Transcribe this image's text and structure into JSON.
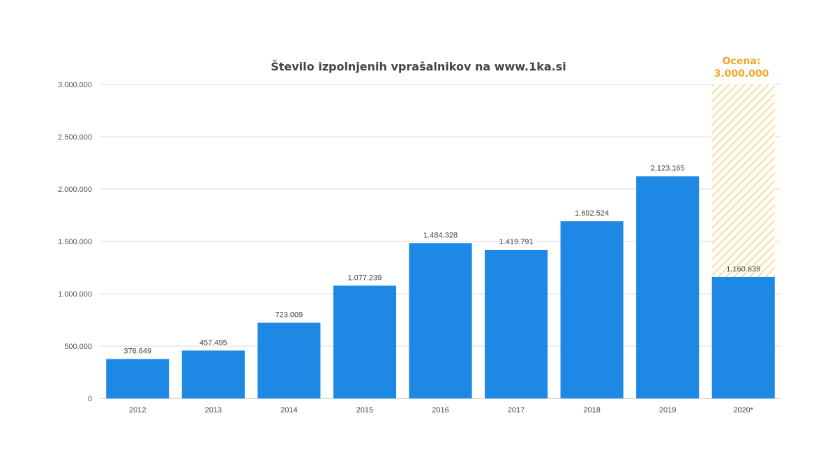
{
  "chart_data": {
    "type": "bar",
    "title": "Število izpolnjenih vprašalnikov na www.1ka.si",
    "xlabel": "",
    "ylabel": "",
    "ylim": [
      0,
      3000000
    ],
    "yticks": [
      0,
      500000,
      1000000,
      1500000,
      2000000,
      2500000,
      3000000
    ],
    "ytick_labels": [
      "0",
      "500.000",
      "1.000.000",
      "1.500.000",
      "2.000.000",
      "2.500.000",
      "3.000.000"
    ],
    "categories": [
      "2012",
      "2013",
      "2014",
      "2015",
      "2016",
      "2017",
      "2018",
      "2019",
      "2020*"
    ],
    "values": [
      376649,
      457495,
      723009,
      1077239,
      1484328,
      1419791,
      1692524,
      2123165,
      1160639
    ],
    "value_labels": [
      "376.649",
      "457.495",
      "723.009",
      "1.077.239",
      "1.484.328",
      "1.419.791",
      "1.692.524",
      "2.123.165",
      "1.160.639"
    ],
    "grid": true,
    "legend": "none",
    "bar_color": "#1e88e5",
    "estimate": {
      "category": "2020*",
      "value": 3000000,
      "label_line1": "Ocena:",
      "label_line2": "3.000.000",
      "color": "#f5a623"
    }
  }
}
